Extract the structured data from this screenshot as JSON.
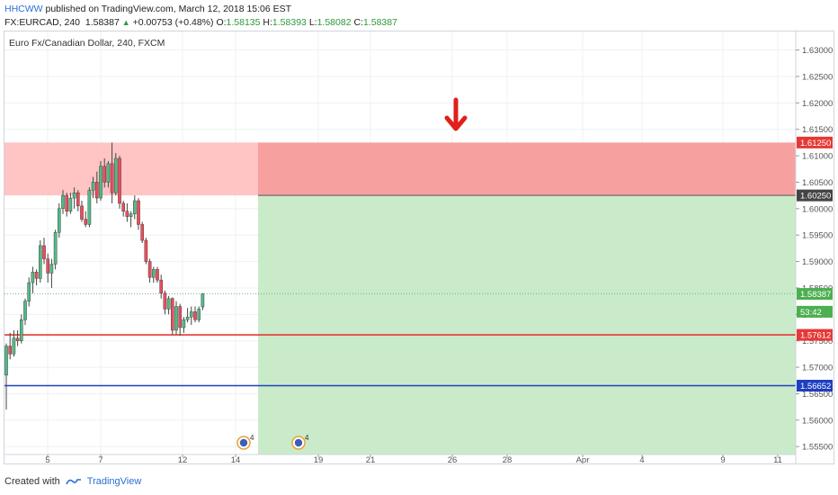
{
  "header": {
    "user": "HHCWW",
    "published": "published on TradingView.com, March 12, 2018 15:06 EST",
    "symbol": "FX:EURCAD, 240",
    "last": "1.58387",
    "change": "+0.00753 (+0.48%)",
    "o_label": "O:",
    "o_value": "1.58135",
    "h_label": "H:",
    "h_value": "1.58393",
    "l_label": "L:",
    "l_value": "1.58082",
    "c_label": "C:",
    "c_value": "1.58387"
  },
  "footer": {
    "created_with": "Created with",
    "brand": "TradingView"
  },
  "chart_data": {
    "type": "candlestick",
    "title": "Euro Fx/Canadian Dollar, 240, FXCM",
    "ylim": [
      1.5535,
      1.6335
    ],
    "y_ticks": [
      "1.55500",
      "1.56000",
      "1.56500",
      "1.57000",
      "1.57500",
      "1.58000",
      "1.58500",
      "1.59000",
      "1.59500",
      "1.60000",
      "1.60500",
      "1.61000",
      "1.61500",
      "1.62000",
      "1.62500",
      "1.63000"
    ],
    "x_ticks": [
      "5",
      "7",
      "12",
      "14",
      "19",
      "21",
      "26",
      "28",
      "Apr",
      "4",
      "9",
      "11"
    ],
    "price_labels": [
      {
        "label": "1.61250",
        "value": 1.6125,
        "color": "#e53935"
      },
      {
        "label": "1.60250",
        "value": 1.6025,
        "color": "#444444"
      },
      {
        "label": "1.58387",
        "value": 1.58387,
        "color": "#4caf50"
      },
      {
        "label": "53:42",
        "value": 1.5805,
        "color": "#4caf50"
      },
      {
        "label": "1.57612",
        "value": 1.57612,
        "color": "#e53935"
      },
      {
        "label": "1.56652",
        "value": 1.56652,
        "color": "#1e3fbf"
      }
    ],
    "resistance_zone": [
      1.6025,
      1.6125
    ],
    "horizontal_lines": [
      {
        "value": 1.57612,
        "color": "#e53935"
      },
      {
        "value": 1.56652,
        "color": "#1e3fbf"
      }
    ],
    "position": {
      "entry": 1.6025,
      "stop": 1.6125,
      "target": 1.5535,
      "direction": "short"
    },
    "candles": [
      [
        1.5685,
        1.5745,
        1.562,
        1.574
      ],
      [
        1.574,
        1.5765,
        1.5715,
        1.5725
      ],
      [
        1.5725,
        1.577,
        1.572,
        1.5755
      ],
      [
        1.5755,
        1.577,
        1.574,
        1.575
      ],
      [
        1.575,
        1.58,
        1.5745,
        1.579
      ],
      [
        1.579,
        1.583,
        1.578,
        1.5825
      ],
      [
        1.5825,
        1.587,
        1.5815,
        1.586
      ],
      [
        1.586,
        1.589,
        1.584,
        1.588
      ],
      [
        1.588,
        1.5885,
        1.5855,
        1.5868
      ],
      [
        1.5868,
        1.594,
        1.586,
        1.593
      ],
      [
        1.593,
        1.5945,
        1.5895,
        1.5905
      ],
      [
        1.5905,
        1.5915,
        1.586,
        1.5878
      ],
      [
        1.5878,
        1.5905,
        1.585,
        1.5895
      ],
      [
        1.5895,
        1.596,
        1.5885,
        1.5955
      ],
      [
        1.5955,
        1.601,
        1.5945,
        1.6
      ],
      [
        1.6,
        1.6035,
        1.599,
        1.6025
      ],
      [
        1.6025,
        1.603,
        1.5985,
        1.5995
      ],
      [
        1.5995,
        1.603,
        1.599,
        1.602
      ],
      [
        1.602,
        1.604,
        1.6,
        1.603
      ],
      [
        1.603,
        1.6035,
        1.5995,
        1.6005
      ],
      [
        1.6005,
        1.6015,
        1.5975,
        1.598
      ],
      [
        1.598,
        1.5995,
        1.5965,
        1.597
      ],
      [
        1.597,
        1.604,
        1.5965,
        1.6035
      ],
      [
        1.6035,
        1.606,
        1.602,
        1.605
      ],
      [
        1.605,
        1.607,
        1.601,
        1.602
      ],
      [
        1.602,
        1.609,
        1.6015,
        1.608
      ],
      [
        1.608,
        1.6095,
        1.604,
        1.605
      ],
      [
        1.605,
        1.609,
        1.604,
        1.6085
      ],
      [
        1.6085,
        1.6125,
        1.601,
        1.603
      ],
      [
        1.603,
        1.6105,
        1.6025,
        1.6095
      ],
      [
        1.6095,
        1.61,
        1.6,
        1.601
      ],
      [
        1.601,
        1.6015,
        1.5985,
        1.5995
      ],
      [
        1.5995,
        1.601,
        1.5975,
        1.5985
      ],
      [
        1.5985,
        1.5995,
        1.5965,
        1.599
      ],
      [
        1.599,
        1.6025,
        1.598,
        1.6015
      ],
      [
        1.6015,
        1.602,
        1.596,
        1.597
      ],
      [
        1.597,
        1.5975,
        1.5935,
        1.594
      ],
      [
        1.594,
        1.5945,
        1.5895,
        1.59
      ],
      [
        1.59,
        1.5905,
        1.586,
        1.587
      ],
      [
        1.587,
        1.589,
        1.586,
        1.5885
      ],
      [
        1.5885,
        1.589,
        1.586,
        1.5865
      ],
      [
        1.5865,
        1.5875,
        1.583,
        1.584
      ],
      [
        1.584,
        1.5845,
        1.58,
        1.581
      ],
      [
        1.581,
        1.5835,
        1.58,
        1.583
      ],
      [
        1.583,
        1.5832,
        1.5762,
        1.577
      ],
      [
        1.577,
        1.5825,
        1.5762,
        1.5815
      ],
      [
        1.5815,
        1.582,
        1.576,
        1.5775
      ],
      [
        1.5775,
        1.5795,
        1.5765,
        1.579
      ],
      [
        1.579,
        1.5812,
        1.5785,
        1.5795
      ],
      [
        1.5795,
        1.5815,
        1.578,
        1.5805
      ],
      [
        1.5805,
        1.5815,
        1.5785,
        1.579
      ],
      [
        1.579,
        1.5815,
        1.5785,
        1.581
      ],
      [
        1.5814,
        1.584,
        1.5808,
        1.5839
      ]
    ]
  }
}
